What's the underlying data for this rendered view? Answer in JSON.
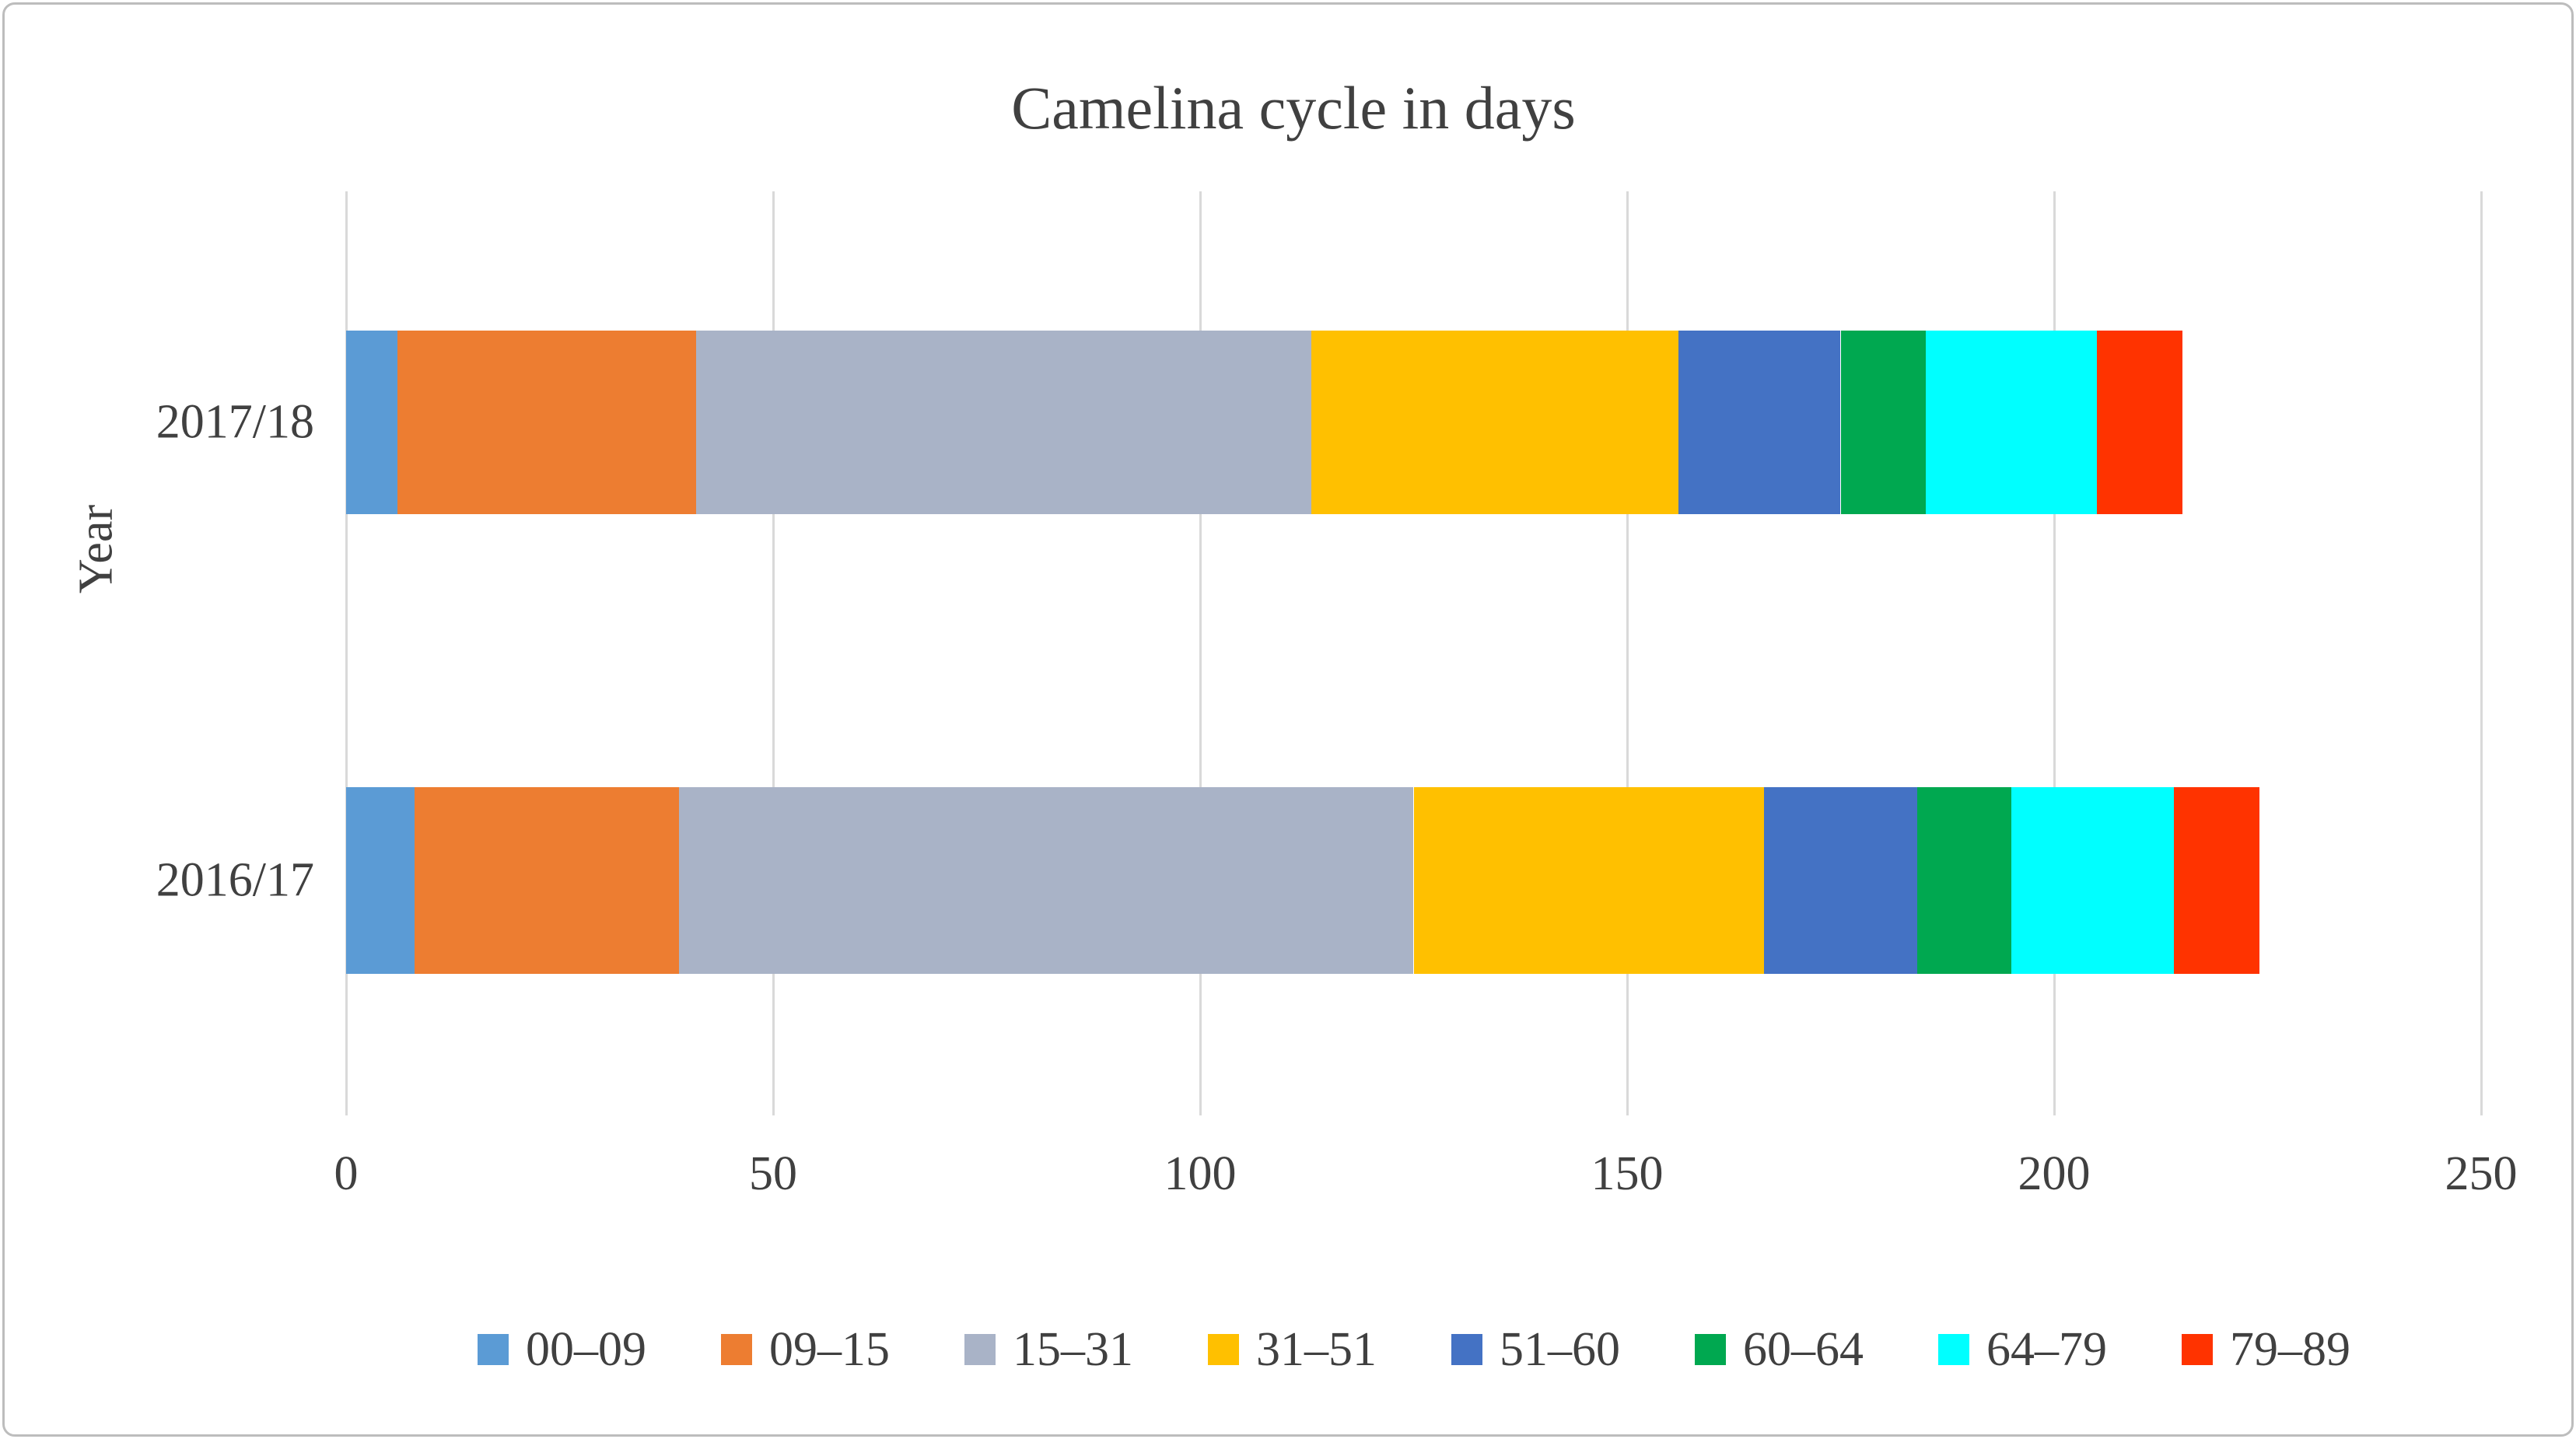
{
  "figure": {
    "title": "Camelina cycle in days",
    "y_axis_title": "Year"
  },
  "chart_data": {
    "type": "bar",
    "orientation": "horizontal",
    "stacked": true,
    "title": "Camelina cycle in days",
    "xlabel": "",
    "ylabel": "Year",
    "xlim": [
      0,
      250
    ],
    "x_ticks": [
      0,
      50,
      100,
      150,
      200,
      250
    ],
    "grid": "vertical-only",
    "legend_position": "bottom",
    "categories": [
      "2017/18",
      "2016/17"
    ],
    "series": [
      {
        "name": "00–09",
        "color": "#5B9BD5",
        "values": [
          6,
          8
        ]
      },
      {
        "name": "09–15",
        "color": "#ED7D31",
        "values": [
          35,
          31
        ]
      },
      {
        "name": "15–31",
        "color": "#A9B3C7",
        "values": [
          72,
          86
        ]
      },
      {
        "name": "31–51",
        "color": "#FFC000",
        "values": [
          43,
          41
        ]
      },
      {
        "name": "51–60",
        "color": "#4472C4",
        "values": [
          19,
          18
        ]
      },
      {
        "name": "60–64",
        "color": "#00A850",
        "values": [
          10,
          11
        ]
      },
      {
        "name": "64–79",
        "color": "#00FFFF",
        "values": [
          20,
          19
        ]
      },
      {
        "name": "79–89",
        "color": "#FF3300",
        "values": [
          10,
          10
        ]
      }
    ],
    "totals": [
      215,
      224
    ]
  }
}
